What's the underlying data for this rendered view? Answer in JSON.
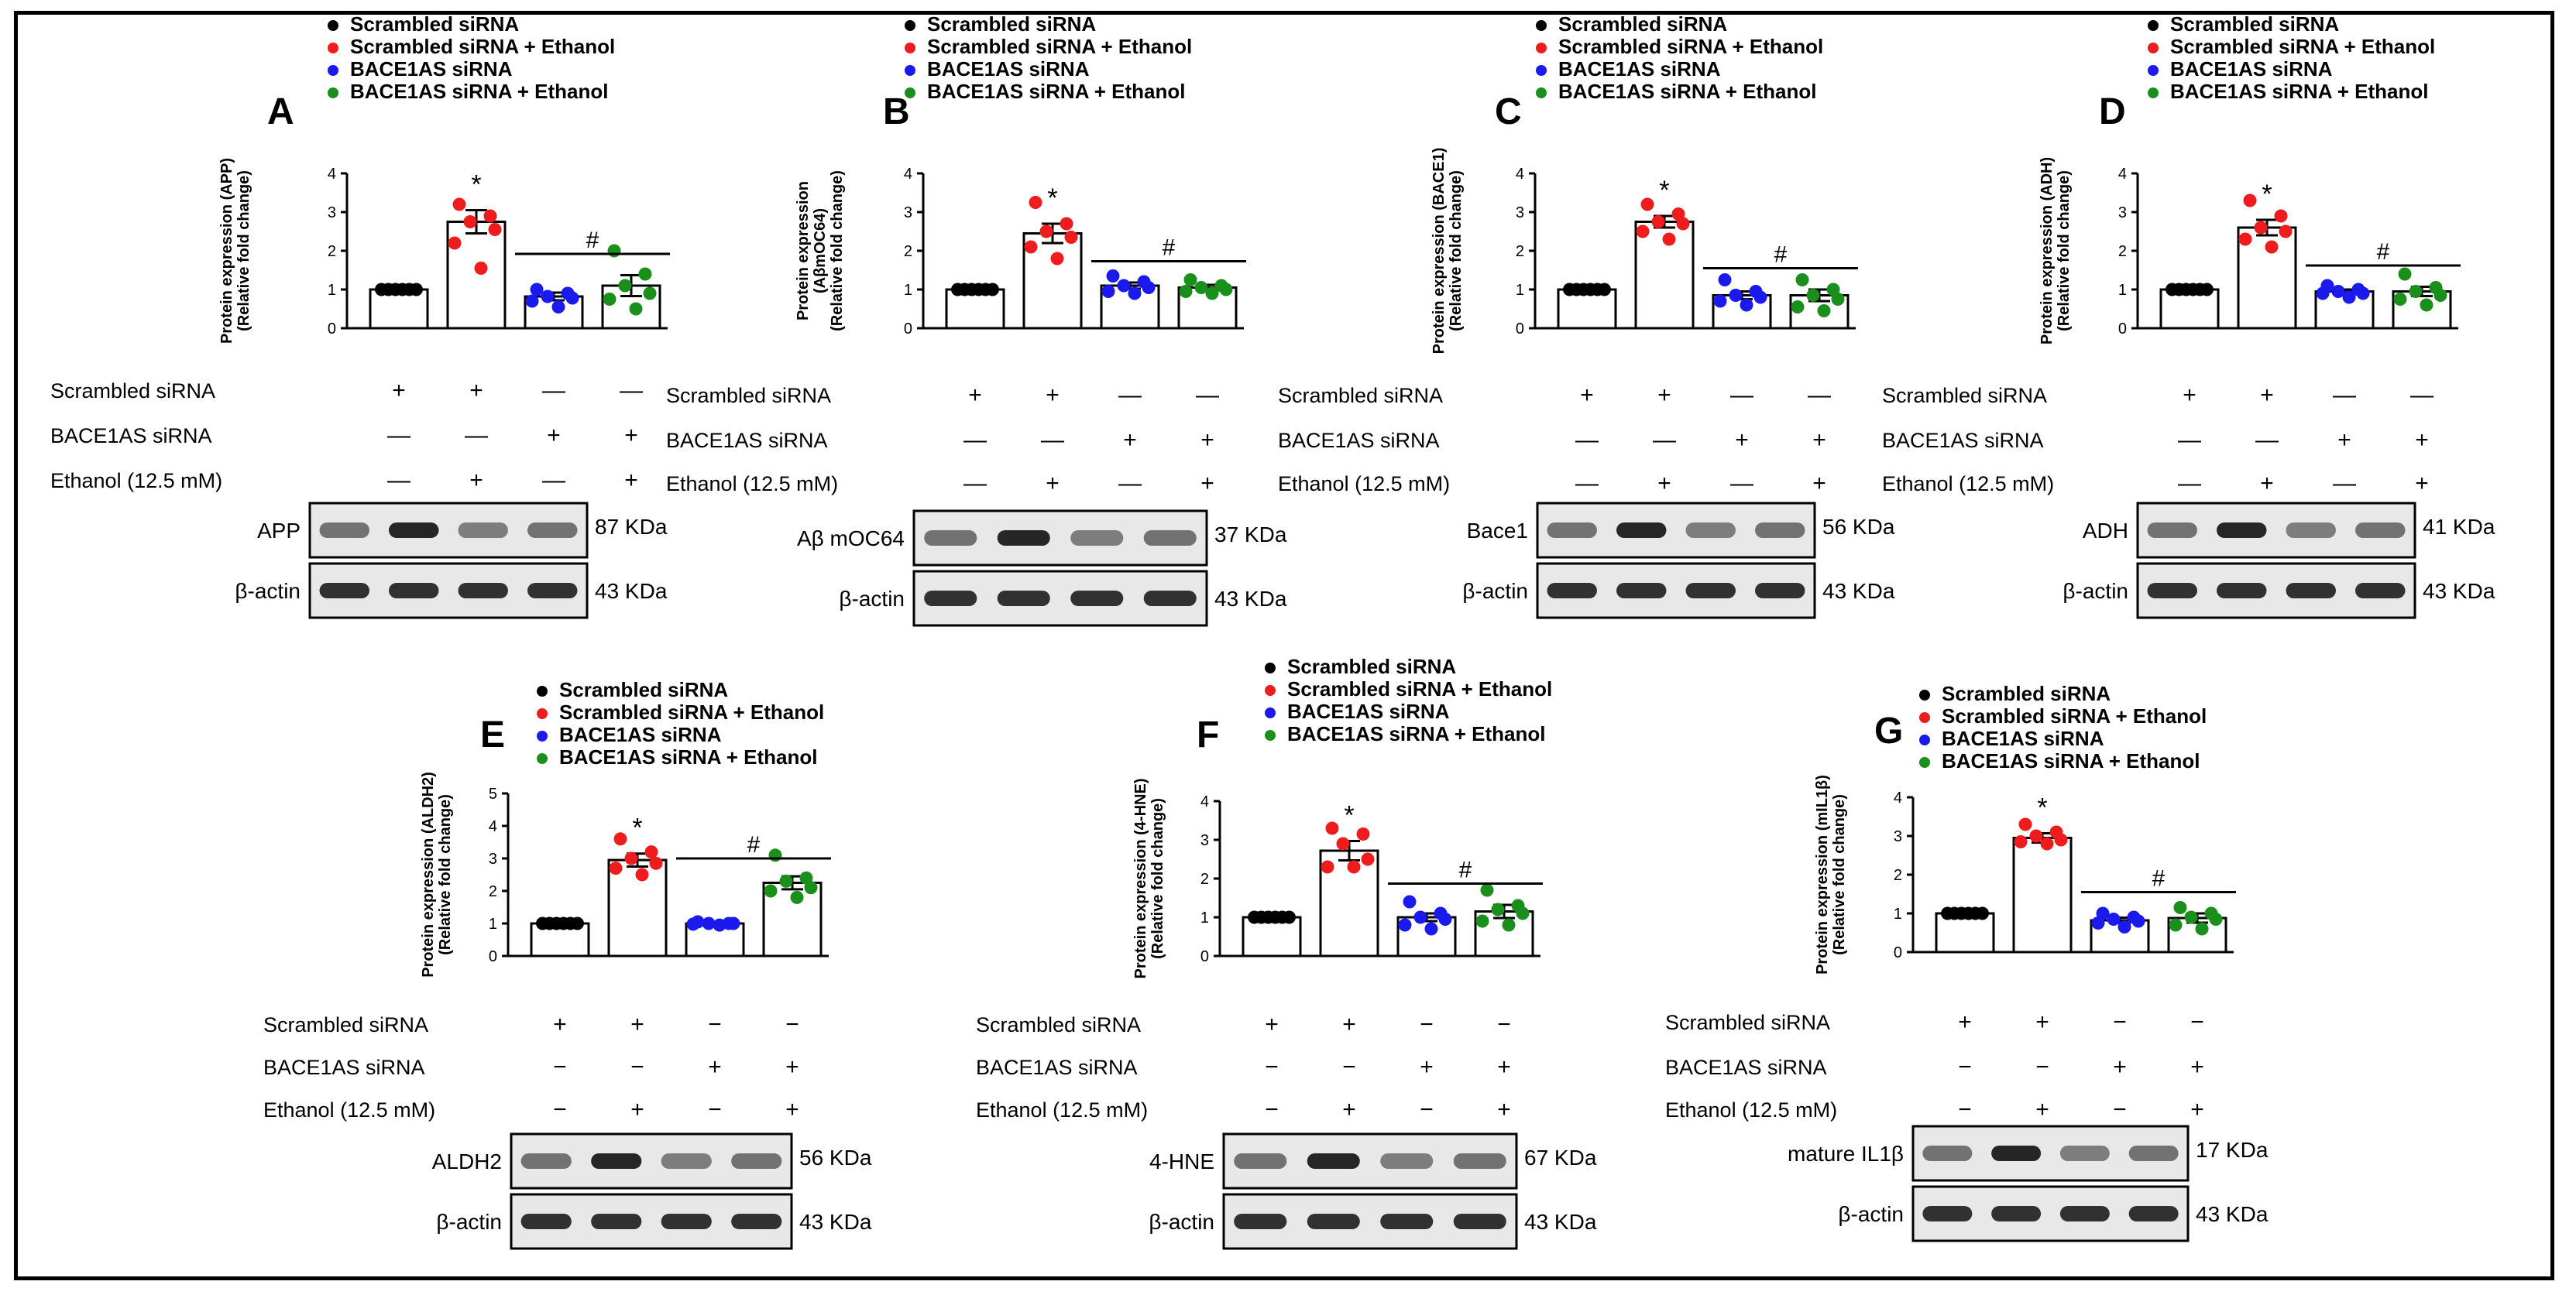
{
  "legend_labels": [
    "Scrambled siRNA",
    "Scrambled siRNA + Ethanol",
    "BACE1AS siRNA",
    "BACE1AS siRNA + Ethanol"
  ],
  "group_colors": [
    "#000000",
    "#ee1c1c",
    "#1a1aee",
    "#1b8f1b"
  ],
  "condition_labels": {
    "scrambled": "Scrambled  siRNA",
    "bace1as": "BACE1AS  siRNA",
    "ethanol": "Ethanol (12.5 mM)"
  },
  "condition_signs": {
    "scrambled": [
      "+",
      "+",
      "−",
      "−"
    ],
    "bace1as": [
      "−",
      "−",
      "+",
      "+"
    ],
    "ethanol": [
      "−",
      "+",
      "−",
      "+"
    ],
    "scrambled_top_row": [
      "+",
      "+",
      "—",
      "—"
    ],
    "bace1as_top_row": [
      "—",
      "—",
      "+",
      "+"
    ],
    "ethanol_top_row": [
      "—",
      "+",
      "—",
      "+"
    ]
  },
  "significance": {
    "vs_control": "*",
    "vs_ethanol": "#"
  },
  "loading_control": {
    "label": "β-actin",
    "weight": "43 KDa"
  },
  "chart_data": [
    {
      "panel": "A",
      "type": "bar",
      "ylabel": [
        "Protein expression (APP)",
        "(Relative fold change)"
      ],
      "ylim": [
        0,
        4
      ],
      "yticks": [
        0,
        1,
        2,
        3,
        4
      ],
      "categories": [
        "Scrambled siRNA",
        "Scrambled siRNA + Ethanol",
        "BACE1AS siRNA",
        "BACE1AS siRNA + Ethanol"
      ],
      "values": [
        1.0,
        2.75,
        0.82,
        1.1
      ],
      "sem": [
        0.0,
        0.3,
        0.1,
        0.27
      ],
      "points": [
        [
          1,
          1,
          1,
          1,
          1,
          1
        ],
        [
          3.2,
          2.9,
          2.75,
          2.55,
          2.2,
          1.55
        ],
        [
          1.0,
          0.9,
          0.82,
          0.78,
          0.7,
          0.55
        ],
        [
          2.0,
          1.4,
          1.1,
          0.9,
          0.75,
          0.5
        ]
      ],
      "protein": "APP",
      "weight": "87 KDa"
    },
    {
      "panel": "B",
      "type": "bar",
      "ylabel": [
        "Protein expression",
        "(AβmOC64)",
        "(Relative fold change)"
      ],
      "ylim": [
        0,
        4
      ],
      "yticks": [
        0,
        1,
        2,
        3,
        4
      ],
      "categories": [
        "Scrambled siRNA",
        "Scrambled siRNA + Ethanol",
        "BACE1AS siRNA",
        "BACE1AS siRNA + Ethanol"
      ],
      "values": [
        1.0,
        2.45,
        1.1,
        1.05
      ],
      "sem": [
        0.0,
        0.25,
        0.08,
        0.07
      ],
      "points": [
        [
          1,
          1,
          1,
          1,
          1,
          1
        ],
        [
          3.25,
          2.7,
          2.5,
          2.35,
          2.1,
          1.8
        ],
        [
          1.35,
          1.2,
          1.1,
          1.05,
          0.95,
          0.9
        ],
        [
          1.25,
          1.1,
          1.05,
          1.0,
          0.95,
          0.9
        ]
      ],
      "protein": "Aβ mOC64",
      "weight": "37 KDa"
    },
    {
      "panel": "C",
      "type": "bar",
      "ylabel": [
        "Protein expression (BACE1)",
        "(Relative fold change)"
      ],
      "ylim": [
        0,
        4
      ],
      "yticks": [
        0,
        1,
        2,
        3,
        4
      ],
      "categories": [
        "Scrambled siRNA",
        "Scrambled siRNA + Ethanol",
        "BACE1AS siRNA",
        "BACE1AS siRNA + Ethanol"
      ],
      "values": [
        1.0,
        2.75,
        0.85,
        0.85
      ],
      "sem": [
        0.0,
        0.15,
        0.1,
        0.15
      ],
      "points": [
        [
          1,
          1,
          1,
          1,
          1,
          1
        ],
        [
          3.2,
          2.95,
          2.75,
          2.7,
          2.5,
          2.3
        ],
        [
          1.25,
          0.95,
          0.85,
          0.8,
          0.7,
          0.6
        ],
        [
          1.25,
          1.0,
          0.85,
          0.75,
          0.55,
          0.45
        ]
      ],
      "protein": "Bace1",
      "weight": "56 KDa"
    },
    {
      "panel": "D",
      "type": "bar",
      "ylabel": [
        "Protein expression (ADH)",
        "(Relative fold change)"
      ],
      "ylim": [
        0,
        4
      ],
      "yticks": [
        0,
        1,
        2,
        3,
        4
      ],
      "categories": [
        "Scrambled siRNA",
        "Scrambled siRNA + Ethanol",
        "BACE1AS siRNA",
        "BACE1AS siRNA + Ethanol"
      ],
      "values": [
        1.0,
        2.6,
        0.95,
        0.95
      ],
      "sem": [
        0.0,
        0.2,
        0.05,
        0.12
      ],
      "points": [
        [
          1,
          1,
          1,
          1,
          1,
          1
        ],
        [
          3.3,
          2.9,
          2.6,
          2.5,
          2.3,
          2.1
        ],
        [
          1.1,
          1.0,
          0.95,
          0.9,
          0.9,
          0.8
        ],
        [
          1.4,
          1.05,
          0.95,
          0.85,
          0.75,
          0.6
        ]
      ],
      "protein": "ADH",
      "weight": "41 KDa"
    },
    {
      "panel": "E",
      "type": "bar",
      "ylabel": [
        "Protein expression (ALDH2)",
        "(Relative fold change)"
      ],
      "ylim": [
        0,
        5
      ],
      "yticks": [
        0,
        1,
        2,
        3,
        4,
        5
      ],
      "categories": [
        "Scrambled siRNA",
        "Scrambled siRNA + Ethanol",
        "BACE1AS siRNA",
        "BACE1AS siRNA + Ethanol"
      ],
      "values": [
        1.0,
        2.95,
        1.0,
        2.25
      ],
      "sem": [
        0.0,
        0.2,
        0.03,
        0.2
      ],
      "points": [
        [
          1,
          1,
          1,
          1,
          1,
          1
        ],
        [
          3.6,
          3.2,
          3.0,
          2.85,
          2.7,
          2.5
        ],
        [
          1.05,
          1.0,
          1.0,
          1.0,
          0.98,
          0.95
        ],
        [
          3.1,
          2.4,
          2.3,
          2.1,
          2.0,
          1.8
        ]
      ],
      "protein": "ALDH2",
      "weight": "56 KDa"
    },
    {
      "panel": "F",
      "type": "bar",
      "ylabel": [
        "Protein expression (4-HNE)",
        "(Relative fold change)"
      ],
      "ylim": [
        0,
        4
      ],
      "yticks": [
        0,
        1,
        2,
        3,
        4
      ],
      "categories": [
        "Scrambled siRNA",
        "Scrambled siRNA + Ethanol",
        "BACE1AS siRNA",
        "BACE1AS siRNA + Ethanol"
      ],
      "values": [
        1.0,
        2.72,
        1.0,
        1.15
      ],
      "sem": [
        0.0,
        0.25,
        0.1,
        0.17
      ],
      "points": [
        [
          1,
          1,
          1,
          1,
          1,
          1
        ],
        [
          3.3,
          3.15,
          2.9,
          2.5,
          2.3,
          2.3
        ],
        [
          1.4,
          1.1,
          1.0,
          0.95,
          0.8,
          0.7
        ],
        [
          1.7,
          1.3,
          1.2,
          1.1,
          0.9,
          0.8
        ]
      ],
      "protein": "4-HNE",
      "weight": "67 KDa"
    },
    {
      "panel": "G",
      "type": "bar",
      "ylabel": [
        "Protein expression (mIL1β)",
        "(Relative fold change)"
      ],
      "ylim": [
        0,
        4
      ],
      "yticks": [
        0,
        1,
        2,
        3,
        4
      ],
      "categories": [
        "Scrambled siRNA",
        "Scrambled siRNA + Ethanol",
        "BACE1AS siRNA",
        "BACE1AS siRNA + Ethanol"
      ],
      "values": [
        1.0,
        2.95,
        0.82,
        0.88
      ],
      "sem": [
        0.0,
        0.12,
        0.07,
        0.12
      ],
      "points": [
        [
          1,
          1,
          1,
          1,
          1,
          1
        ],
        [
          3.3,
          3.1,
          3.0,
          2.9,
          2.85,
          2.8
        ],
        [
          1.0,
          0.9,
          0.85,
          0.8,
          0.75,
          0.65
        ],
        [
          1.15,
          1.0,
          0.9,
          0.85,
          0.7,
          0.6
        ]
      ],
      "protein": "mature IL1β",
      "weight": "17 KDa"
    }
  ]
}
